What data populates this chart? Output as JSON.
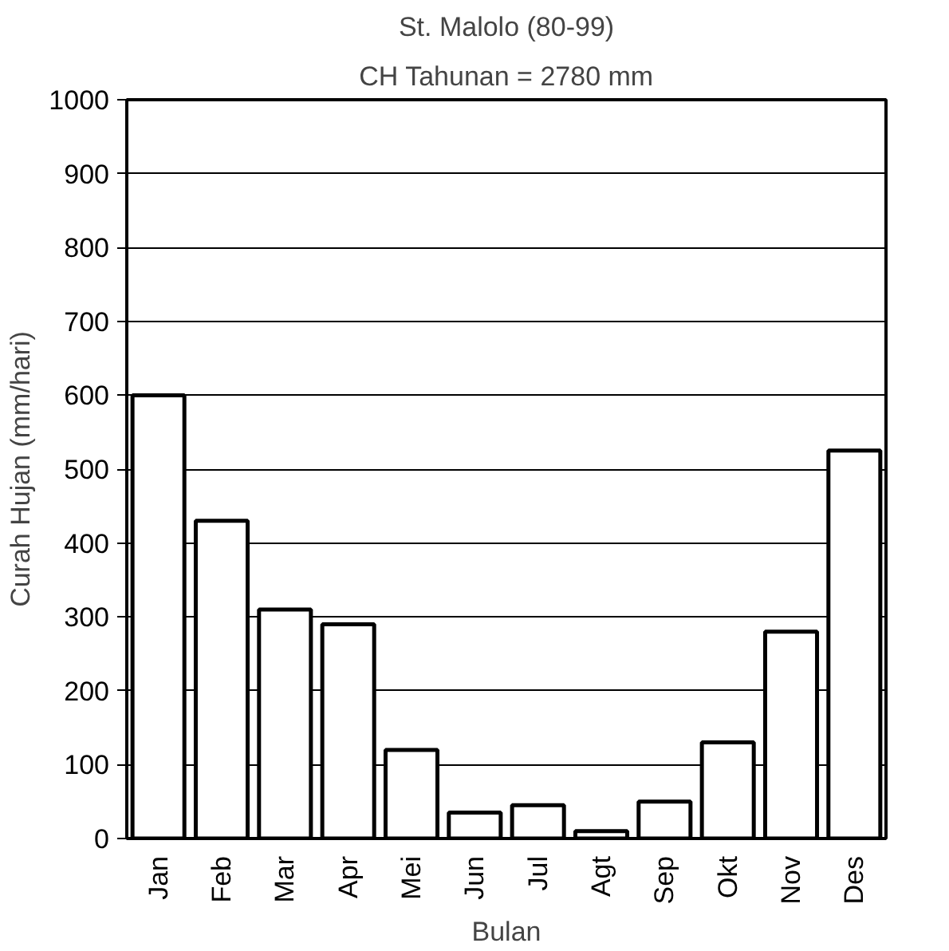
{
  "chart_data": {
    "type": "bar",
    "title": "St. Malolo (80-99)",
    "subtitle": "CH Tahunan = 2780 mm",
    "xlabel": "Bulan",
    "ylabel": "Curah Hujan (mm/hari)",
    "categories": [
      "Jan",
      "Feb",
      "Mar",
      "Apr",
      "Mei",
      "Jun",
      "Jul",
      "Agt",
      "Sep",
      "Okt",
      "Nov",
      "Des"
    ],
    "values": [
      600,
      430,
      310,
      290,
      120,
      35,
      45,
      10,
      50,
      130,
      280,
      525
    ],
    "color": "#ffffff",
    "ylim": [
      0,
      1000
    ],
    "yticks": [
      0,
      100,
      200,
      300,
      400,
      500,
      600,
      700,
      800,
      900,
      1000
    ],
    "grid": "y"
  }
}
